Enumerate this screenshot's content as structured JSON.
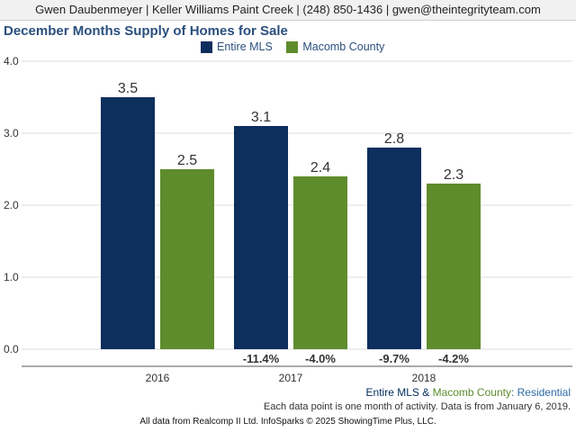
{
  "header": {
    "text": "Gwen Daubenmeyer | Keller Williams Paint Creek | (248) 850-1436 | gwen@theintegrityteam.com"
  },
  "chart_data": {
    "type": "bar",
    "title": "December Months Supply of Homes for Sale",
    "categories": [
      "2016",
      "2017",
      "2018"
    ],
    "series": [
      {
        "name": "Entire MLS",
        "values": [
          3.5,
          3.1,
          2.8
        ],
        "color": "#0d2f5e",
        "changes": [
          "",
          "-11.4%",
          "-9.7%"
        ]
      },
      {
        "name": "Macomb County",
        "values": [
          2.5,
          2.4,
          2.3
        ],
        "color": "#5e8c2c",
        "changes": [
          "",
          "-4.0%",
          "-4.2%"
        ]
      }
    ],
    "ylim": [
      0,
      4
    ],
    "yticks": [
      "0.0",
      "1.0",
      "2.0",
      "3.0",
      "4.0"
    ],
    "grid": true,
    "legend": "top"
  },
  "subtitle": {
    "part1": "Entire MLS",
    "amp": " & ",
    "part2": "Macomb County",
    "part3": ": Residential"
  },
  "note": "Each data point is one month of activity. Data is from January 6, 2019.",
  "footer": "All data from Realcomp II Ltd. InfoSparks © 2025 ShowingTime Plus, LLC."
}
